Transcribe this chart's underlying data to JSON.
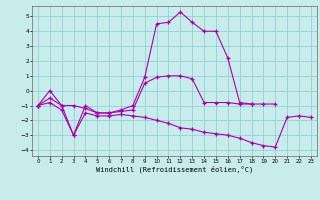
{
  "xlabel": "Windchill (Refroidissement éolien,°C)",
  "xlim": [
    -0.5,
    23.5
  ],
  "ylim": [
    -4.4,
    5.7
  ],
  "yticks": [
    -4,
    -3,
    -2,
    -1,
    0,
    1,
    2,
    3,
    4,
    5
  ],
  "xticks": [
    0,
    1,
    2,
    3,
    4,
    5,
    6,
    7,
    8,
    9,
    10,
    11,
    12,
    13,
    14,
    15,
    16,
    17,
    18,
    19,
    20,
    21,
    22,
    23
  ],
  "bg_color": "#c8ecec",
  "grid_color": "#88cccc",
  "line_color": "#aa00aa",
  "lines": [
    {
      "x": [
        0,
        1,
        2,
        3,
        4,
        5,
        6,
        7,
        8,
        9,
        10,
        11,
        12,
        13,
        14,
        15,
        16,
        17,
        18
      ],
      "y": [
        -1.0,
        0.0,
        -1.0,
        -3.0,
        -1.0,
        -1.5,
        -1.5,
        -1.3,
        -1.0,
        0.9,
        4.5,
        4.6,
        5.3,
        4.6,
        4.0,
        4.0,
        2.2,
        -0.8,
        -0.9
      ]
    },
    {
      "x": [
        0,
        1,
        2,
        3,
        4,
        5,
        6,
        7,
        8,
        9,
        10,
        11,
        12,
        13,
        14,
        15,
        16,
        17,
        18,
        19,
        20
      ],
      "y": [
        -1.0,
        -0.5,
        -1.0,
        -1.0,
        -1.2,
        -1.5,
        -1.5,
        -1.4,
        -1.3,
        0.5,
        0.9,
        1.0,
        1.0,
        0.8,
        -0.8,
        -0.8,
        -0.8,
        -0.9,
        -0.9,
        -0.9,
        -0.9
      ]
    },
    {
      "x": [
        0,
        1,
        2,
        3,
        4,
        5,
        6,
        7,
        8,
        9,
        10,
        11,
        12,
        13,
        14,
        15,
        16,
        17,
        18,
        19,
        20,
        21,
        22,
        23
      ],
      "y": [
        -1.0,
        -0.8,
        -1.3,
        -3.0,
        -1.5,
        -1.7,
        -1.7,
        -1.6,
        -1.7,
        -1.8,
        -2.0,
        -2.2,
        -2.5,
        -2.6,
        -2.8,
        -2.9,
        -3.0,
        -3.2,
        -3.5,
        -3.7,
        -3.8,
        -1.8,
        -1.7,
        -1.8
      ]
    }
  ]
}
